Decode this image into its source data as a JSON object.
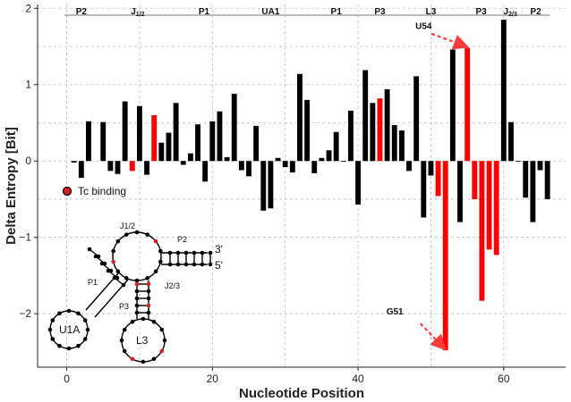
{
  "chart_data": {
    "type": "bar",
    "xlabel": "Nucleotide Position",
    "ylabel": "Delta Entropy [Bit]",
    "xlim": [
      -4,
      68.5
    ],
    "ylim": [
      -2.7,
      2.05
    ],
    "xticks": [
      0,
      20,
      40,
      60
    ],
    "yticks": [
      -2,
      -1,
      0,
      1,
      2
    ],
    "grid": true,
    "series": [
      {
        "color": "#000000",
        "points": [
          [
            1,
            -0.02
          ],
          [
            2,
            -0.22
          ],
          [
            3,
            0.52
          ],
          [
            5,
            0.51
          ],
          [
            6,
            -0.13
          ],
          [
            7,
            -0.17
          ],
          [
            8,
            0.78
          ],
          [
            10,
            0.72
          ],
          [
            11,
            -0.18
          ],
          [
            13,
            0.24
          ],
          [
            14,
            0.37
          ],
          [
            15,
            0.76
          ],
          [
            16,
            -0.05
          ],
          [
            17,
            0.1
          ],
          [
            18,
            0.48
          ],
          [
            19,
            -0.27
          ],
          [
            20,
            0.52
          ],
          [
            21,
            0.65
          ],
          [
            22,
            0.05
          ],
          [
            23,
            0.88
          ],
          [
            24,
            -0.12
          ],
          [
            25,
            -0.2
          ],
          [
            26,
            0.46
          ],
          [
            27,
            -0.65
          ],
          [
            28,
            -0.62
          ],
          [
            29,
            0.04
          ],
          [
            30,
            -0.08
          ],
          [
            31,
            -0.15
          ],
          [
            32,
            1.14
          ],
          [
            33,
            0.8
          ],
          [
            34,
            -0.16
          ],
          [
            35,
            0.04
          ],
          [
            36,
            0.14
          ],
          [
            37,
            0.38
          ],
          [
            38,
            -0.01
          ],
          [
            39,
            0.66
          ],
          [
            40,
            -0.57
          ],
          [
            41,
            1.19
          ],
          [
            42,
            0.76
          ],
          [
            44,
            0.94
          ],
          [
            45,
            0.47
          ],
          [
            46,
            0.4
          ],
          [
            47,
            -0.13
          ],
          [
            48,
            1.11
          ],
          [
            49,
            -0.74
          ],
          [
            50,
            -0.19
          ],
          [
            53,
            1.46
          ],
          [
            54,
            -0.8
          ],
          [
            59,
            -0.01
          ],
          [
            60,
            1.85
          ],
          [
            61,
            0.51
          ],
          [
            62,
            -0.01
          ],
          [
            63,
            -0.48
          ],
          [
            64,
            -0.8
          ],
          [
            65,
            -0.12
          ],
          [
            66,
            -0.5
          ]
        ]
      },
      {
        "color": "#ff0000",
        "points": [
          [
            9,
            -0.13
          ],
          [
            12,
            0.6
          ],
          [
            43,
            0.82
          ],
          [
            51,
            -0.46
          ],
          [
            52,
            -2.48
          ],
          [
            55,
            1.48
          ],
          [
            56,
            -0.5
          ],
          [
            57,
            -1.83
          ],
          [
            58,
            -1.16
          ],
          [
            59,
            -1.23
          ]
        ]
      }
    ],
    "regions": [
      {
        "label": "P2",
        "start": -0.3,
        "end": 4.3
      },
      {
        "label": "J1/2",
        "start": 4.3,
        "end": 15.2
      },
      {
        "label": "P1",
        "start": 15.2,
        "end": 22.5
      },
      {
        "label": "UA1",
        "start": 22.5,
        "end": 33.5
      },
      {
        "label": "P1",
        "start": 33.5,
        "end": 40.5
      },
      {
        "label": "P3",
        "start": 40.5,
        "end": 45.5
      },
      {
        "label": "L3",
        "start": 45.5,
        "end": 54.5
      },
      {
        "label": "P3",
        "start": 54.5,
        "end": 59.3
      },
      {
        "label": "J2/3",
        "start": 59.3,
        "end": 62.5
      },
      {
        "label": "P2",
        "start": 62.5,
        "end": 66.3
      }
    ],
    "annotations": [
      {
        "label": "U54",
        "target": [
          55,
          1.48
        ]
      },
      {
        "label": "G51",
        "target": [
          52,
          -2.48
        ]
      }
    ],
    "legend": {
      "label": "Tc binding",
      "marker_color": "#d62020"
    },
    "inset": {
      "loop_labels": [
        "U1A",
        "L3"
      ],
      "segment_labels": [
        "J1/2",
        "P2",
        "P1",
        "J2/3",
        "P3"
      ],
      "end_labels": [
        "3'",
        "5'"
      ]
    }
  }
}
